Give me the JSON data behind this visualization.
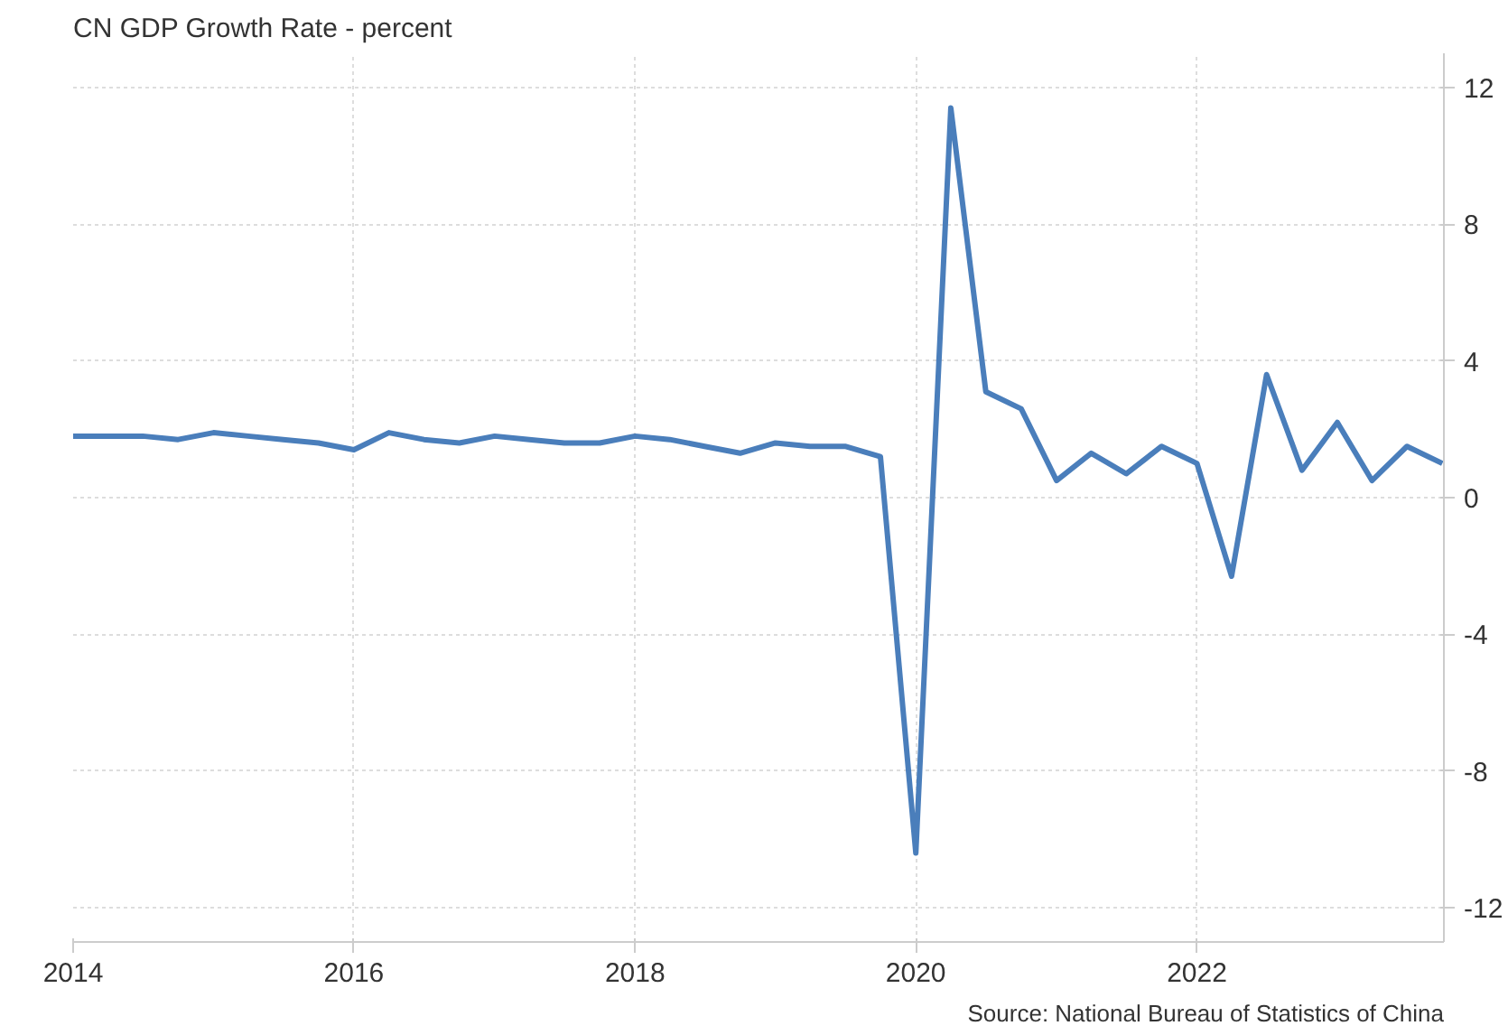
{
  "chart_data": {
    "type": "line",
    "title": "CN GDP Growth Rate - percent",
    "x": [
      "2014-01",
      "2014-04",
      "2014-07",
      "2014-10",
      "2015-01",
      "2015-04",
      "2015-07",
      "2015-10",
      "2016-01",
      "2016-04",
      "2016-07",
      "2016-10",
      "2017-01",
      "2017-04",
      "2017-07",
      "2017-10",
      "2018-01",
      "2018-04",
      "2018-07",
      "2018-10",
      "2019-01",
      "2019-04",
      "2019-07",
      "2019-10",
      "2020-01",
      "2020-04",
      "2020-07",
      "2020-10",
      "2021-01",
      "2021-04",
      "2021-07",
      "2021-10",
      "2022-01",
      "2022-04",
      "2022-07",
      "2022-10",
      "2023-01",
      "2023-04",
      "2023-07",
      "2023-10"
    ],
    "series": [
      {
        "color": "#4a7ebb",
        "values": [
          1.8,
          1.8,
          1.8,
          1.7,
          1.9,
          1.8,
          1.7,
          1.6,
          1.4,
          1.9,
          1.7,
          1.6,
          1.8,
          1.7,
          1.6,
          1.6,
          1.8,
          1.7,
          1.5,
          1.3,
          1.6,
          1.5,
          1.5,
          1.2,
          -10.4,
          11.4,
          3.1,
          2.6,
          0.5,
          1.3,
          0.7,
          1.5,
          1.0,
          -2.3,
          3.6,
          0.8,
          2.2,
          0.5,
          1.5,
          1.0
        ]
      }
    ],
    "xlim": [
      "2014-01",
      "2023-10-05"
    ],
    "xticks": [
      "2014",
      "2016",
      "2018",
      "2020",
      "2022"
    ],
    "ylim": [
      -13,
      13
    ],
    "yticks": [
      -12,
      -8,
      -4,
      0,
      4,
      8,
      12
    ],
    "grid": true,
    "marker": "none",
    "line_style": "solid",
    "annotations": [
      "Source: National Bureau of Statistics of China"
    ]
  }
}
